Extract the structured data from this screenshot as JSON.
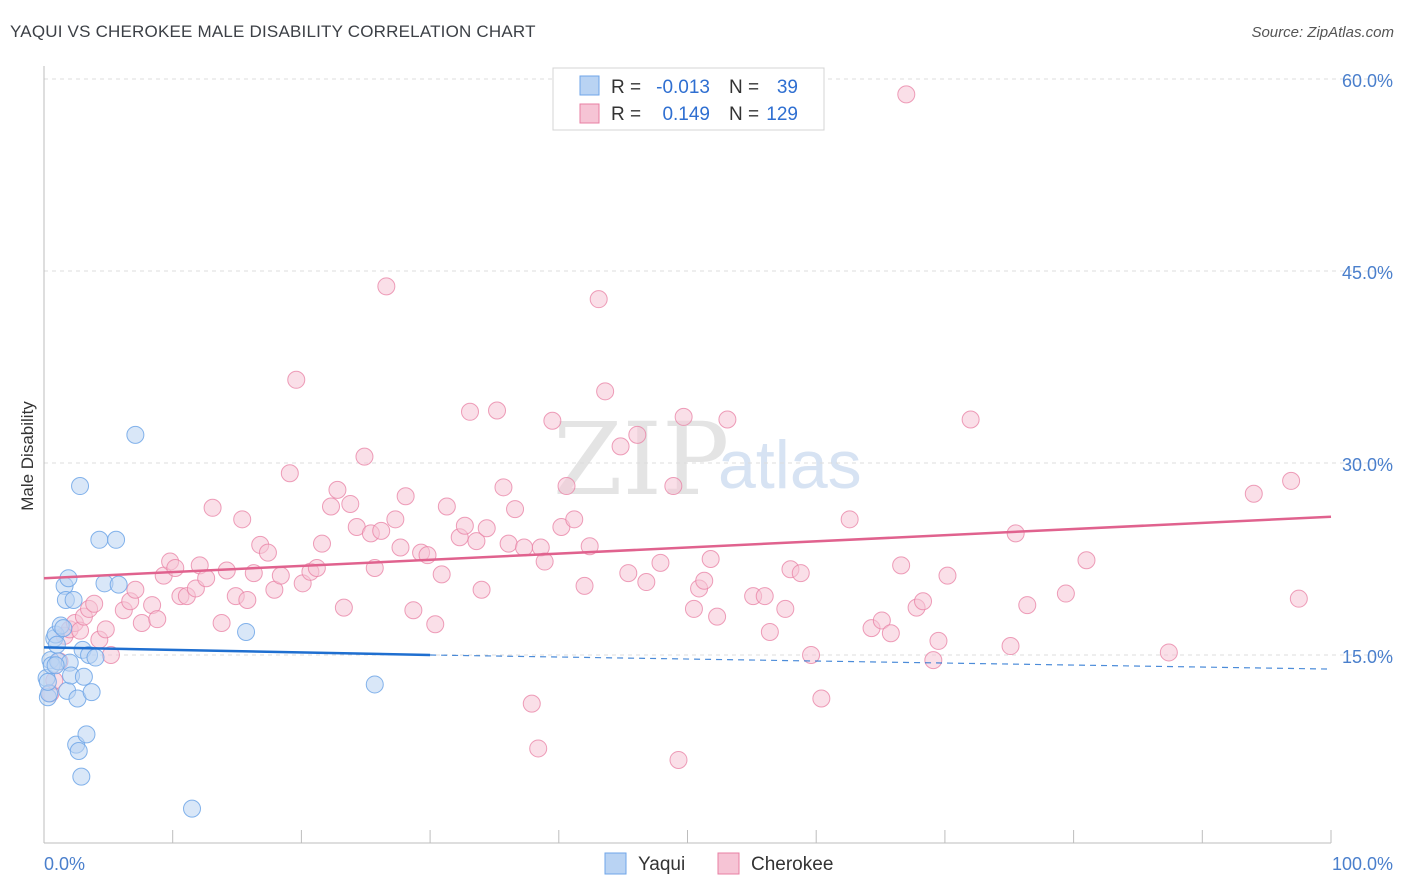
{
  "title": "YAQUI VS CHEROKEE MALE DISABILITY CORRELATION CHART",
  "source": "Source: ZipAtlas.com",
  "watermark": {
    "zip": "ZIP",
    "atlas": "atlas"
  },
  "colors": {
    "yaqui": "#6fa6e8",
    "yaqui_fill": "#b9d3f3",
    "yaqui_line": "#1f6fd0",
    "cherokee": "#e87fa3",
    "cherokee_fill": "#f6c4d5",
    "cherokee_line": "#e0628e",
    "axis_text": "#4a7fcc",
    "grid": "#dcdcdc"
  },
  "legend": {
    "rows": [
      {
        "r_label": "R =",
        "r_value": "-0.013",
        "n_label": "N =",
        "n_value": "39"
      },
      {
        "r_label": "R =",
        "r_value": "0.149",
        "n_label": "N =",
        "n_value": "129"
      }
    ],
    "bottom": [
      "Yaqui",
      "Cherokee"
    ]
  },
  "chart_data": {
    "type": "scatter",
    "title": "YAQUI VS CHEROKEE MALE DISABILITY CORRELATION CHART",
    "xlabel": "",
    "ylabel": "Male Disability",
    "xlim": [
      0,
      100
    ],
    "ylim": [
      0,
      63
    ],
    "x_tick_labels": [
      "0.0%",
      "100.0%"
    ],
    "y_ticks": [
      15,
      30,
      45,
      60
    ],
    "y_tick_labels": [
      "15.0%",
      "30.0%",
      "45.0%",
      "60.0%"
    ],
    "series": [
      {
        "name": "Yaqui",
        "r": -0.013,
        "n": 39,
        "trend": {
          "x": [
            0,
            30
          ],
          "y": [
            15.6,
            15.0
          ],
          "dashed_to": [
            100,
            13.9
          ]
        },
        "points": [
          [
            0.2,
            13.2
          ],
          [
            0.3,
            11.7
          ],
          [
            0.4,
            12.0
          ],
          [
            0.5,
            14.6
          ],
          [
            0.6,
            14.2
          ],
          [
            0.8,
            16.3
          ],
          [
            0.9,
            16.6
          ],
          [
            1.0,
            15.8
          ],
          [
            1.1,
            14.5
          ],
          [
            1.3,
            17.3
          ],
          [
            1.5,
            17.1
          ],
          [
            1.6,
            20.4
          ],
          [
            1.7,
            19.3
          ],
          [
            1.8,
            12.2
          ],
          [
            1.9,
            21.0
          ],
          [
            2.0,
            14.4
          ],
          [
            2.1,
            13.4
          ],
          [
            2.3,
            19.3
          ],
          [
            2.5,
            8.0
          ],
          [
            2.6,
            11.6
          ],
          [
            2.7,
            7.5
          ],
          [
            2.8,
            28.2
          ],
          [
            2.9,
            5.5
          ],
          [
            3.0,
            15.4
          ],
          [
            3.1,
            13.3
          ],
          [
            3.3,
            8.8
          ],
          [
            3.5,
            15.0
          ],
          [
            3.7,
            12.1
          ],
          [
            4.0,
            14.8
          ],
          [
            4.3,
            24.0
          ],
          [
            4.7,
            20.6
          ],
          [
            5.6,
            24.0
          ],
          [
            5.8,
            20.5
          ],
          [
            7.1,
            32.2
          ],
          [
            11.5,
            3.0
          ],
          [
            15.7,
            16.8
          ],
          [
            25.7,
            12.7
          ],
          [
            0.9,
            14.2
          ],
          [
            0.3,
            12.9
          ]
        ]
      },
      {
        "name": "Cherokee",
        "r": 0.149,
        "n": 129,
        "trend": {
          "x": [
            0,
            100
          ],
          "y": [
            21.0,
            25.8
          ]
        },
        "points": [
          [
            0.5,
            12.0
          ],
          [
            0.8,
            13.0
          ],
          [
            1.2,
            14.5
          ],
          [
            1.6,
            16.5
          ],
          [
            2.0,
            17.0
          ],
          [
            2.4,
            17.5
          ],
          [
            2.8,
            16.9
          ],
          [
            3.1,
            18.0
          ],
          [
            3.5,
            18.6
          ],
          [
            3.9,
            19.0
          ],
          [
            4.3,
            16.2
          ],
          [
            4.8,
            17.0
          ],
          [
            5.2,
            15.0
          ],
          [
            6.2,
            18.5
          ],
          [
            6.7,
            19.2
          ],
          [
            7.1,
            20.1
          ],
          [
            7.6,
            17.5
          ],
          [
            8.4,
            18.9
          ],
          [
            8.8,
            17.8
          ],
          [
            9.3,
            21.2
          ],
          [
            9.8,
            22.3
          ],
          [
            10.2,
            21.8
          ],
          [
            10.6,
            19.6
          ],
          [
            11.1,
            19.6
          ],
          [
            11.8,
            20.2
          ],
          [
            12.1,
            22.0
          ],
          [
            12.6,
            21.0
          ],
          [
            13.1,
            26.5
          ],
          [
            13.8,
            17.5
          ],
          [
            14.2,
            21.6
          ],
          [
            14.9,
            19.6
          ],
          [
            15.4,
            25.6
          ],
          [
            15.8,
            19.3
          ],
          [
            16.3,
            21.4
          ],
          [
            16.8,
            23.6
          ],
          [
            17.4,
            23.0
          ],
          [
            17.9,
            20.1
          ],
          [
            18.4,
            21.2
          ],
          [
            19.1,
            29.2
          ],
          [
            19.6,
            36.5
          ],
          [
            20.1,
            20.6
          ],
          [
            20.7,
            21.5
          ],
          [
            21.2,
            21.8
          ],
          [
            21.6,
            23.7
          ],
          [
            22.3,
            26.6
          ],
          [
            22.8,
            27.9
          ],
          [
            23.3,
            18.7
          ],
          [
            23.8,
            26.8
          ],
          [
            24.3,
            25.0
          ],
          [
            24.9,
            30.5
          ],
          [
            25.4,
            24.5
          ],
          [
            25.7,
            21.8
          ],
          [
            26.2,
            24.7
          ],
          [
            26.6,
            43.8
          ],
          [
            27.3,
            25.6
          ],
          [
            27.7,
            23.4
          ],
          [
            28.1,
            27.4
          ],
          [
            28.7,
            18.5
          ],
          [
            29.3,
            23.0
          ],
          [
            29.8,
            22.8
          ],
          [
            30.4,
            17.4
          ],
          [
            30.9,
            21.3
          ],
          [
            31.3,
            26.6
          ],
          [
            32.3,
            24.2
          ],
          [
            32.7,
            25.1
          ],
          [
            33.1,
            34.0
          ],
          [
            33.6,
            23.9
          ],
          [
            34.0,
            20.1
          ],
          [
            34.4,
            24.9
          ],
          [
            35.2,
            34.1
          ],
          [
            35.7,
            28.1
          ],
          [
            36.1,
            23.7
          ],
          [
            36.6,
            26.4
          ],
          [
            37.3,
            23.4
          ],
          [
            37.9,
            11.2
          ],
          [
            38.4,
            7.7
          ],
          [
            38.6,
            23.4
          ],
          [
            38.9,
            22.3
          ],
          [
            39.5,
            33.3
          ],
          [
            40.2,
            25.0
          ],
          [
            40.6,
            28.2
          ],
          [
            41.2,
            25.6
          ],
          [
            42.0,
            20.4
          ],
          [
            42.4,
            23.5
          ],
          [
            43.1,
            42.8
          ],
          [
            43.6,
            35.6
          ],
          [
            44.8,
            31.3
          ],
          [
            45.4,
            21.4
          ],
          [
            46.1,
            32.2
          ],
          [
            46.8,
            20.7
          ],
          [
            47.9,
            22.2
          ],
          [
            48.9,
            28.2
          ],
          [
            49.3,
            6.8
          ],
          [
            49.7,
            33.6
          ],
          [
            50.5,
            18.6
          ],
          [
            50.9,
            20.2
          ],
          [
            51.3,
            20.8
          ],
          [
            51.8,
            22.5
          ],
          [
            52.3,
            18.0
          ],
          [
            53.1,
            33.4
          ],
          [
            55.1,
            19.6
          ],
          [
            56.0,
            19.6
          ],
          [
            57.6,
            18.6
          ],
          [
            58.0,
            21.7
          ],
          [
            58.8,
            21.4
          ],
          [
            59.6,
            15.0
          ],
          [
            60.4,
            11.6
          ],
          [
            62.6,
            25.6
          ],
          [
            64.3,
            17.1
          ],
          [
            65.1,
            17.7
          ],
          [
            65.8,
            16.7
          ],
          [
            66.6,
            22.0
          ],
          [
            67.0,
            58.8
          ],
          [
            67.8,
            18.7
          ],
          [
            68.3,
            19.2
          ],
          [
            69.1,
            14.6
          ],
          [
            69.5,
            16.1
          ],
          [
            70.2,
            21.2
          ],
          [
            72.0,
            33.4
          ],
          [
            75.1,
            15.7
          ],
          [
            75.5,
            24.5
          ],
          [
            76.4,
            18.9
          ],
          [
            79.4,
            19.8
          ],
          [
            81.0,
            22.4
          ],
          [
            87.4,
            15.2
          ],
          [
            94.0,
            27.6
          ],
          [
            96.9,
            28.6
          ],
          [
            97.5,
            19.4
          ],
          [
            56.4,
            16.8
          ]
        ]
      }
    ]
  }
}
